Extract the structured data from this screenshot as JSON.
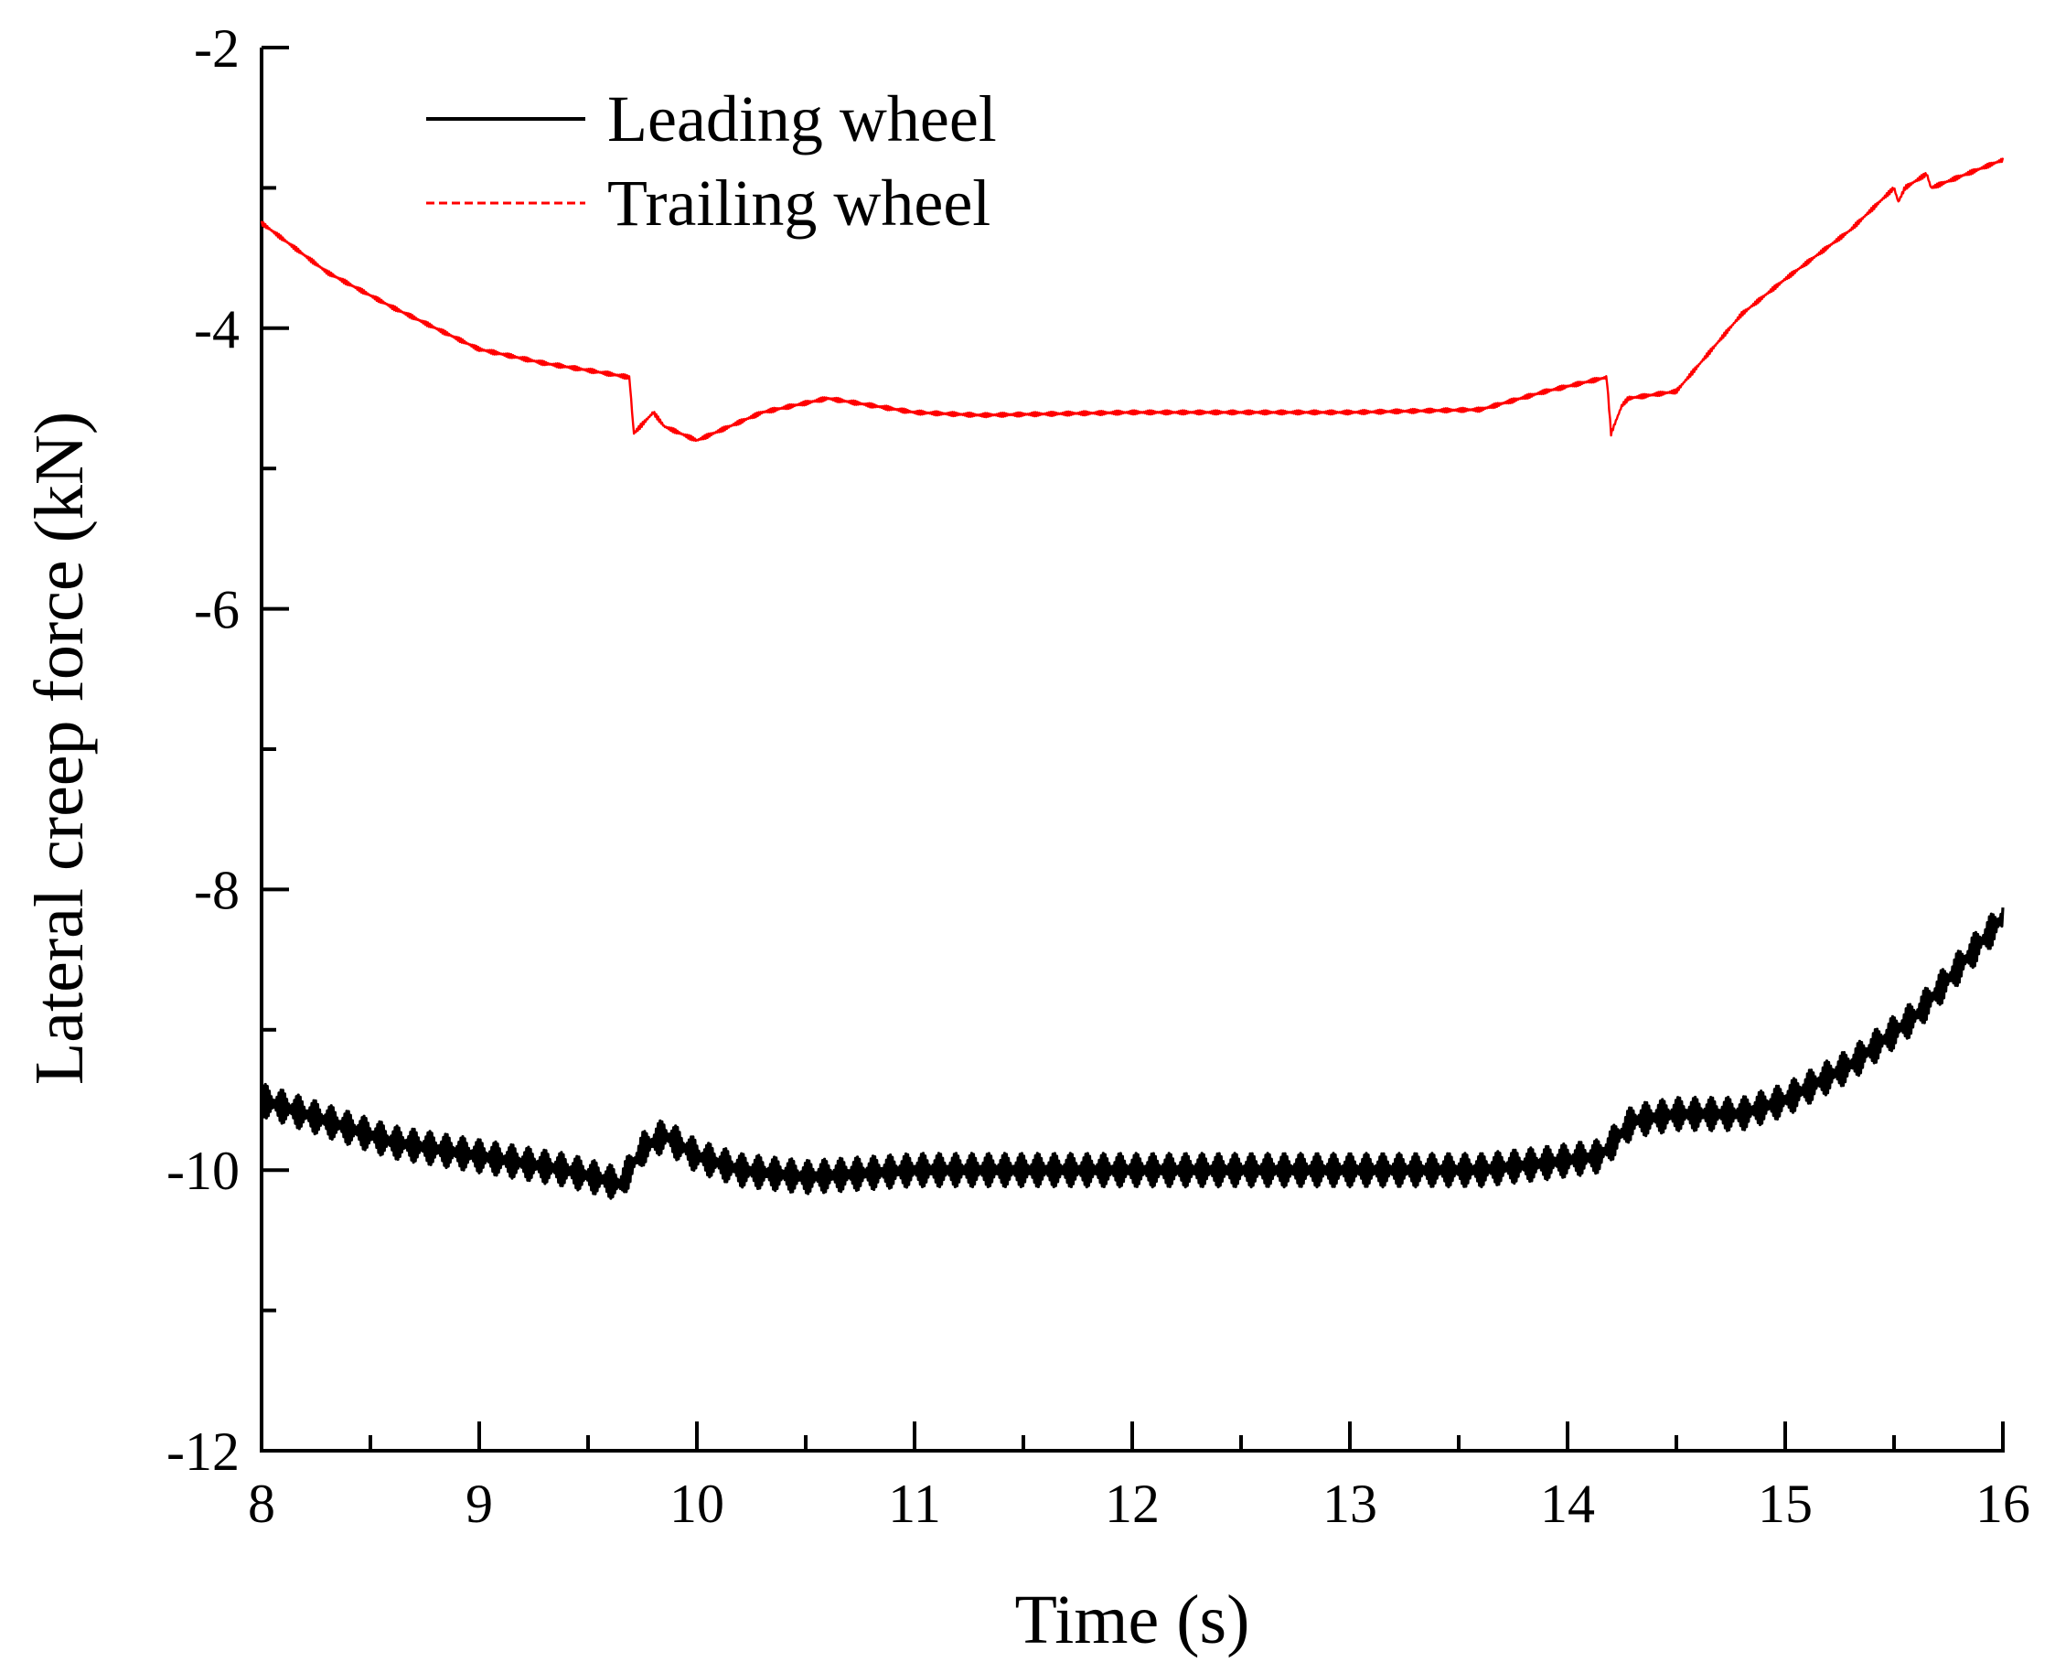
{
  "chart_data": {
    "type": "line",
    "title": "",
    "xlabel": "Time (s)",
    "ylabel": "Lateral creep force (kN)",
    "xlim": [
      8,
      16
    ],
    "ylim": [
      -12,
      -2
    ],
    "xticks": [
      8,
      9,
      10,
      11,
      12,
      13,
      14,
      15,
      16
    ],
    "xtick_labels": [
      "8",
      "9",
      "10",
      "11",
      "12",
      "13",
      "14",
      "15",
      "16"
    ],
    "yticks": [
      -12,
      -10,
      -8,
      -6,
      -4,
      -2
    ],
    "ytick_labels": [
      "-12",
      "-10",
      "-8",
      "-6",
      "-4",
      "-2"
    ],
    "grid": false,
    "legend_position": "top-left",
    "series": [
      {
        "name": "Leading wheel",
        "color": "#000000",
        "style": "solid",
        "oscillation_amplitude": 0.12,
        "x": [
          8.0,
          8.3,
          8.6,
          9.0,
          9.4,
          9.65,
          9.75,
          9.85,
          10.0,
          10.2,
          10.5,
          11.0,
          12.0,
          13.0,
          13.6,
          13.9,
          14.15,
          14.3,
          14.5,
          14.8,
          15.0,
          15.3,
          15.6,
          16.0
        ],
        "y": [
          -9.5,
          -9.65,
          -9.8,
          -9.9,
          -10.0,
          -10.1,
          -9.85,
          -9.75,
          -9.9,
          -10.0,
          -10.05,
          -10.0,
          -10.0,
          -10.0,
          -10.0,
          -9.95,
          -9.9,
          -9.65,
          -9.6,
          -9.6,
          -9.5,
          -9.25,
          -8.9,
          -8.2
        ]
      },
      {
        "name": "Trailing wheel",
        "color": "#ff0000",
        "style": "dashed",
        "oscillation_amplitude": 0.015,
        "x": [
          8.0,
          8.3,
          8.6,
          9.0,
          9.3,
          9.5,
          9.69,
          9.71,
          9.8,
          9.85,
          10.0,
          10.3,
          10.6,
          11.0,
          11.3,
          12.0,
          13.0,
          13.6,
          13.9,
          14.18,
          14.2,
          14.25,
          14.28,
          14.5,
          14.8,
          15.0,
          15.3,
          15.5,
          15.52,
          15.55,
          15.65,
          15.67,
          16.0
        ],
        "y": [
          -3.25,
          -3.6,
          -3.85,
          -4.15,
          -4.25,
          -4.3,
          -4.35,
          -4.75,
          -4.6,
          -4.7,
          -4.8,
          -4.6,
          -4.5,
          -4.6,
          -4.62,
          -4.6,
          -4.6,
          -4.58,
          -4.45,
          -4.35,
          -4.75,
          -4.55,
          -4.5,
          -4.45,
          -3.9,
          -3.65,
          -3.3,
          -3.0,
          -3.1,
          -3.0,
          -2.9,
          -3.0,
          -2.8
        ]
      }
    ]
  }
}
